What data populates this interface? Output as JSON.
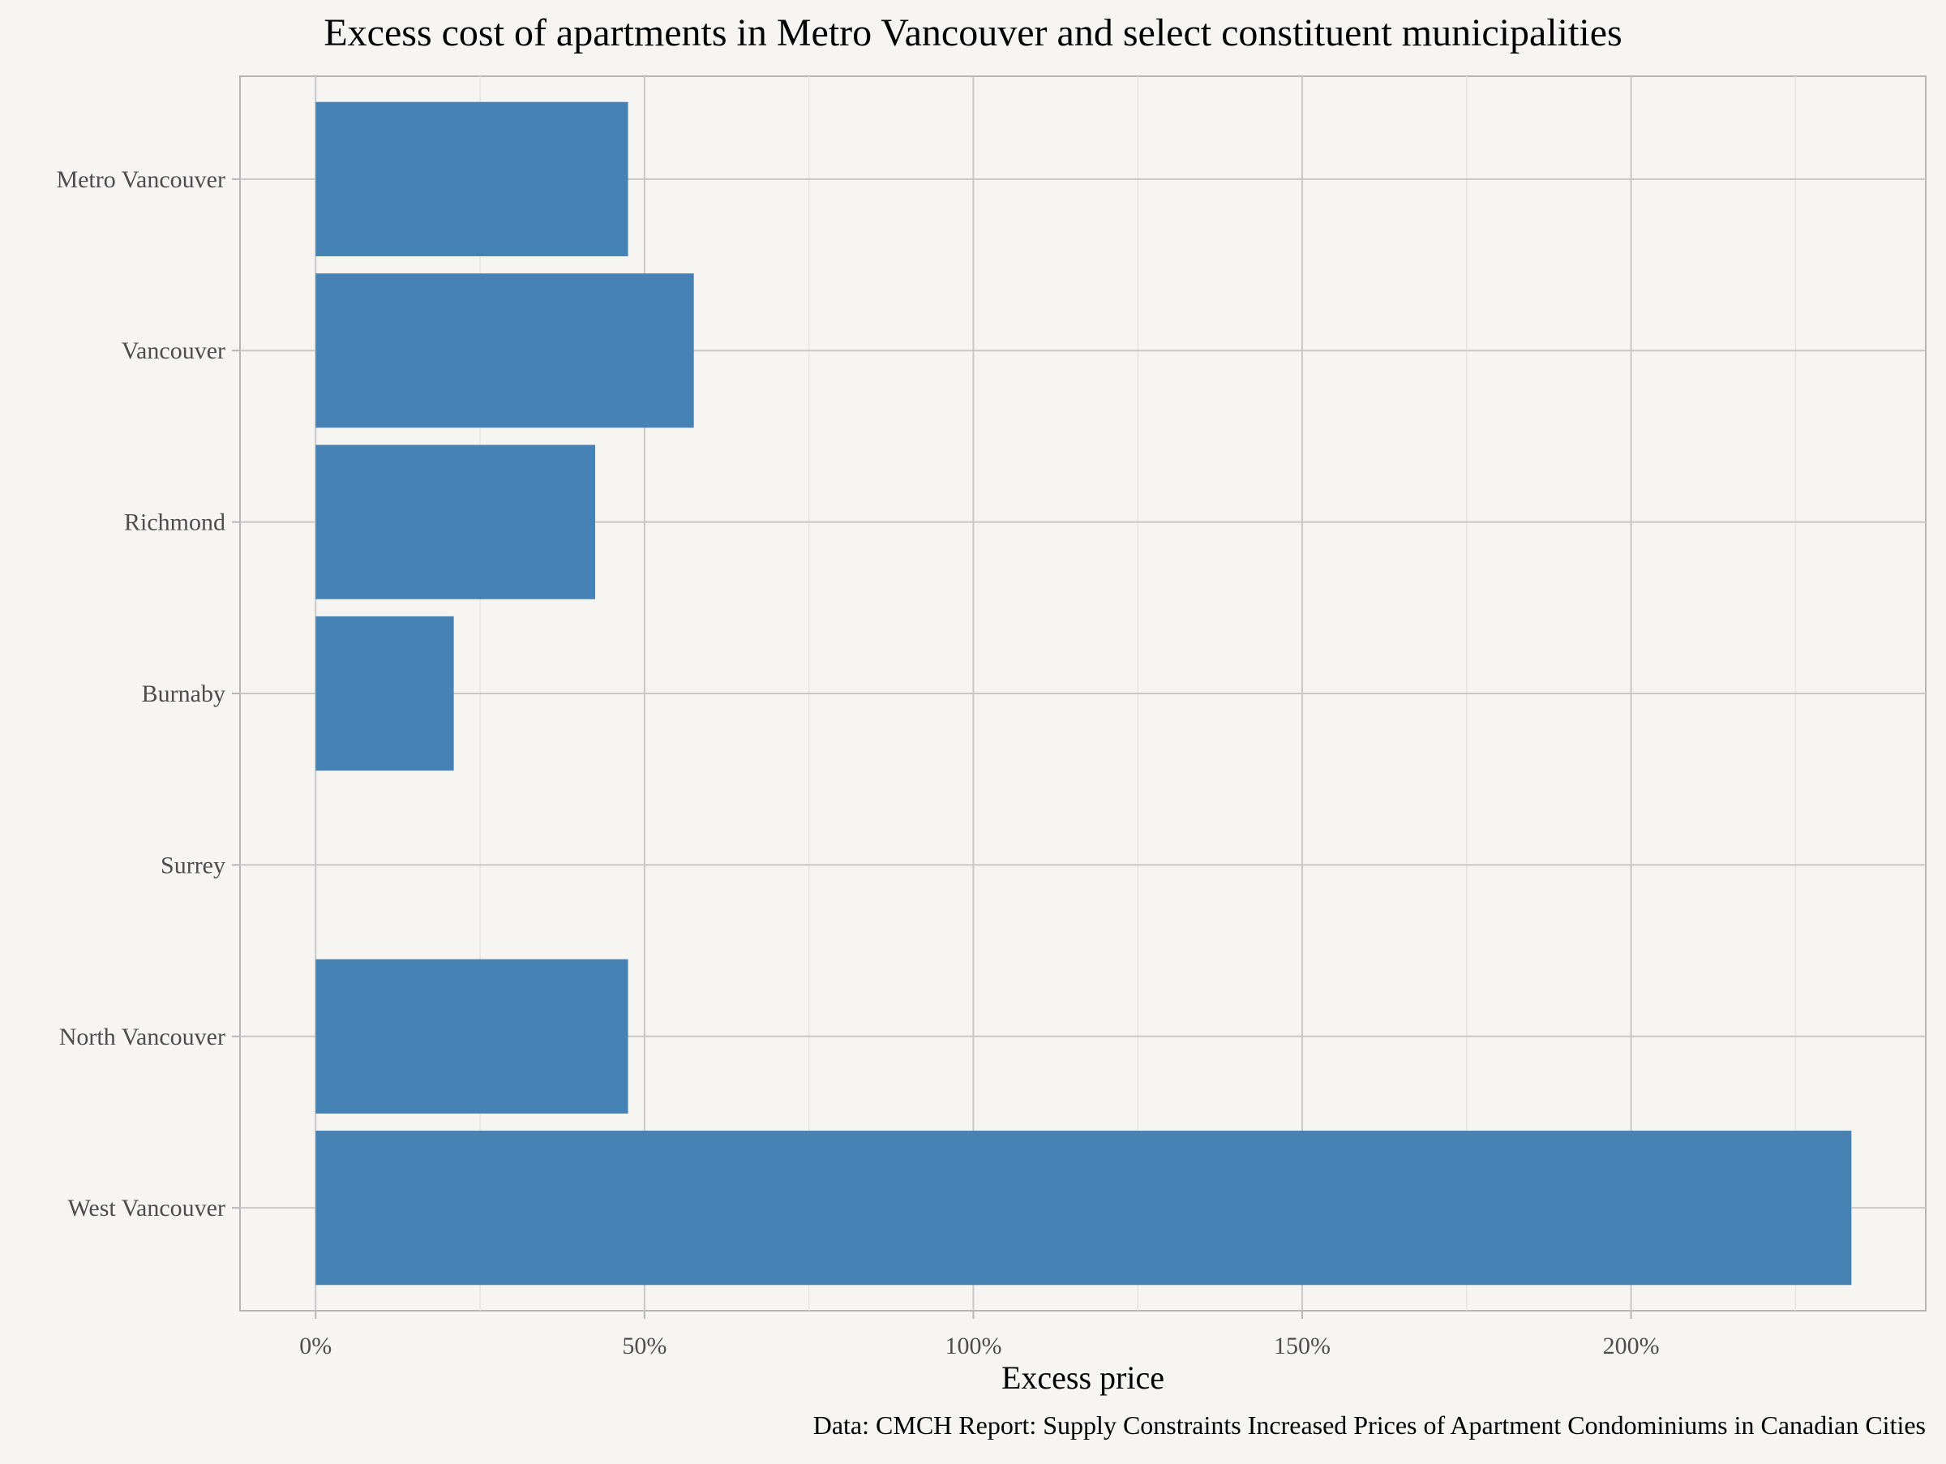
{
  "chart_data": {
    "type": "bar",
    "orientation": "horizontal",
    "title": "Excess cost of apartments in Metro Vancouver and select constituent municipalities",
    "xlabel": "Excess price",
    "ylabel": "",
    "caption": "Data: CMCH Report: Supply Constraints Increased Prices of Apartment Condominiums in Canadian Cities",
    "categories": [
      "Metro Vancouver",
      "Vancouver",
      "Richmond",
      "Burnaby",
      "Surrey",
      "North Vancouver",
      "West Vancouver"
    ],
    "values": [
      0.475,
      0.575,
      0.425,
      0.21,
      0,
      0.475,
      2.335
    ],
    "value_format": "percent",
    "xlim": [
      -0.115,
      2.448
    ],
    "xticks": [
      0,
      0.5,
      1,
      1.5,
      2
    ],
    "xtick_labels": [
      "0%",
      "50%",
      "100%",
      "150%",
      "200%"
    ],
    "grid": true,
    "legend": "none",
    "colors": {
      "bar": "#4682b4",
      "background": "#f7f5f1",
      "grid_major": "#c8c8c8",
      "grid_minor": "#e6e4e0",
      "axis_text": "#4d4d4d"
    }
  }
}
